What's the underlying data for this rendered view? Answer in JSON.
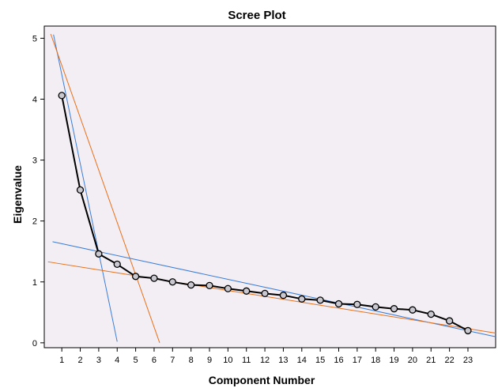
{
  "chart_data": {
    "type": "line",
    "title": "Scree Plot",
    "xlabel": "Component Number",
    "ylabel": "Eigenvalue",
    "xlim": [
      0.05,
      24.5
    ],
    "ylim": [
      -0.08,
      5.2
    ],
    "x_ticks": [
      1,
      2,
      3,
      4,
      5,
      6,
      7,
      8,
      9,
      10,
      11,
      12,
      13,
      14,
      15,
      16,
      17,
      18,
      19,
      20,
      21,
      22,
      23
    ],
    "y_ticks": [
      0,
      1,
      2,
      3,
      4,
      5
    ],
    "grid": false,
    "legend": "none",
    "series": [
      {
        "x": [
          1,
          2,
          3,
          4,
          5,
          6,
          7,
          8,
          9,
          10,
          11,
          12,
          13,
          14,
          15,
          16,
          17,
          18,
          19,
          20,
          21,
          22,
          23
        ],
        "values": [
          4.06,
          2.51,
          1.46,
          1.29,
          1.09,
          1.06,
          1.0,
          0.95,
          0.94,
          0.89,
          0.85,
          0.81,
          0.78,
          0.72,
          0.7,
          0.64,
          0.63,
          0.59,
          0.56,
          0.54,
          0.47,
          0.36,
          0.2
        ],
        "color": "#000000",
        "marker": "circle"
      }
    ],
    "reference_lines": [
      {
        "x": [
          0.55,
          4.0
        ],
        "y": [
          5.06,
          0.02
        ],
        "color": "#3b7dd8"
      },
      {
        "x": [
          0.4,
          6.3
        ],
        "y": [
          5.07,
          0.0
        ],
        "color": "#e8701a"
      },
      {
        "x": [
          0.5,
          24.5
        ],
        "y": [
          1.66,
          0.1
        ],
        "color": "#3b7dd8"
      },
      {
        "x": [
          0.25,
          24.5
        ],
        "y": [
          1.33,
          0.16
        ],
        "color": "#e8701a"
      }
    ],
    "colors": {
      "plot_background": "#f3eef3",
      "plot_border": "#000000"
    }
  }
}
